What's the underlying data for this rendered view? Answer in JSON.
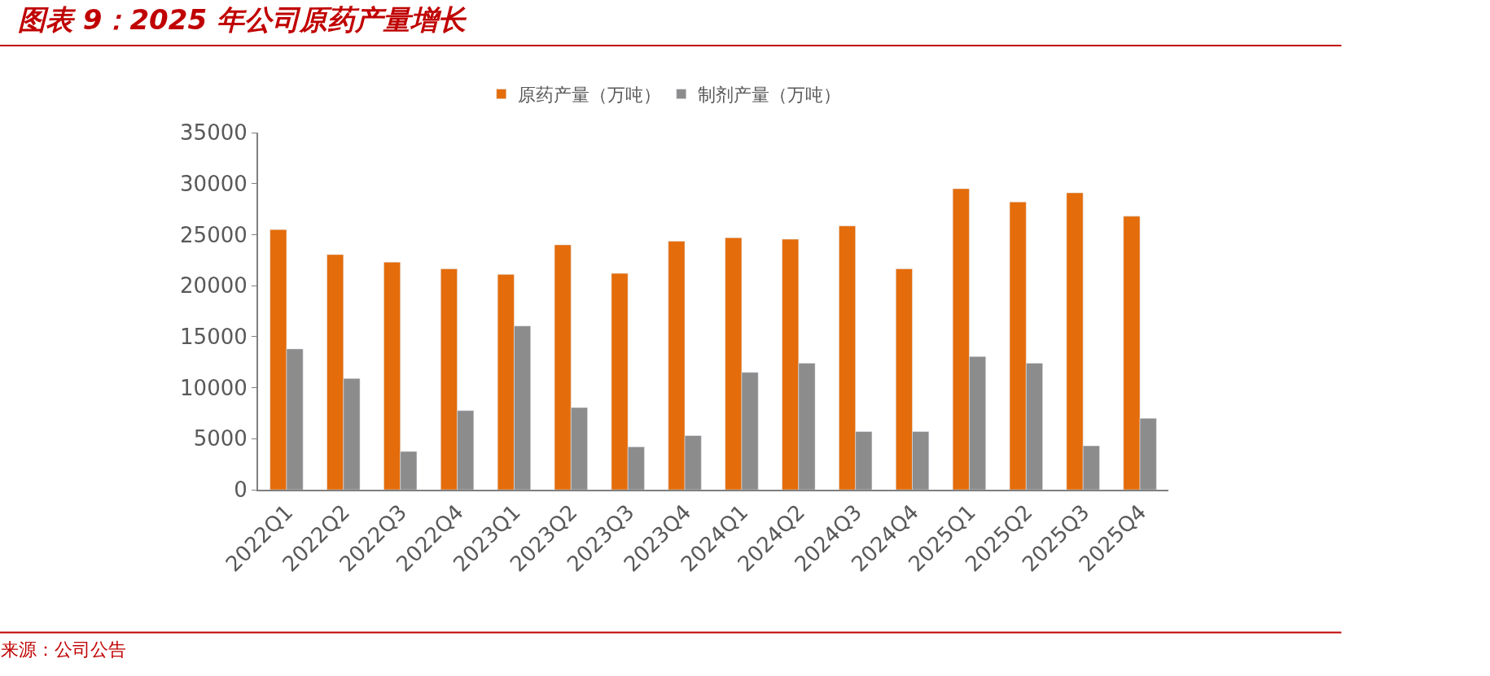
{
  "chart_data": {
    "type": "bar",
    "title": "图表 9：2025 年公司原药产量增长",
    "categories": [
      "2022Q1",
      "2022Q2",
      "2022Q3",
      "2022Q4",
      "2023Q1",
      "2023Q2",
      "2023Q3",
      "2023Q4",
      "2024Q1",
      "2024Q2",
      "2024Q3",
      "2024Q4",
      "2025Q1",
      "2025Q2",
      "2025Q3",
      "2025Q4"
    ],
    "series": [
      {
        "name": "原药产量（万吨）",
        "color": "#e46c0a",
        "values": [
          25500,
          23050,
          22300,
          21650,
          21100,
          24000,
          21200,
          24350,
          24700,
          24550,
          25850,
          21650,
          29500,
          28200,
          29100,
          26800
        ]
      },
      {
        "name": "制剂产量（万吨）",
        "color": "#8c8c8c",
        "values": [
          13800,
          10900,
          3750,
          7750,
          16050,
          8050,
          4200,
          5300,
          11500,
          12400,
          5700,
          5700,
          13050,
          12400,
          4300,
          7000
        ]
      }
    ],
    "ylim": [
      0,
      35000
    ],
    "yticks": [
      0,
      5000,
      10000,
      15000,
      20000,
      25000,
      30000,
      35000
    ],
    "legend": "top",
    "annotations": [
      "来源：公司公告"
    ]
  }
}
